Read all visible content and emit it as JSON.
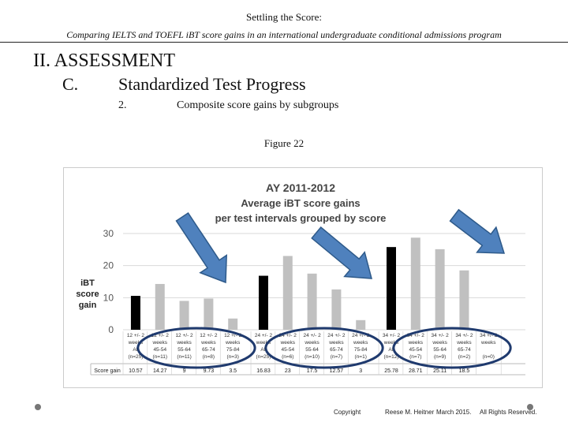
{
  "header": {
    "title": "Settling the Score:",
    "subtitle": "Comparing IELTS and TOEFL iBT score gains in an international undergraduate conditional admissions program"
  },
  "outline": {
    "section": "II.  ASSESSMENT",
    "subsection_letter": "C.",
    "subsection_title": "Standardized Test Progress",
    "item_number": "2.",
    "item_text": "Composite score gains by subgroups"
  },
  "figure_label": "Figure 22",
  "chart_data": {
    "type": "bar",
    "title": [
      "AY 2011-2012",
      "Average iBT score gains",
      "per  test intervals grouped by score"
    ],
    "ylabel": [
      "iBT",
      "score",
      "gain"
    ],
    "ylim": [
      0,
      30
    ],
    "yticks": [
      0,
      10,
      20,
      30
    ],
    "table_row_header": "Score gain",
    "categories": [
      [
        "12 +/- 2",
        "weeks",
        "All",
        "(n=25)"
      ],
      [
        "12 +/- 2",
        "weeks",
        "45-54",
        "(n=11)"
      ],
      [
        "12 +/- 2",
        "weeks",
        "55-64",
        "(n=11)"
      ],
      [
        "12 +/- 2",
        "weeks",
        "65-74",
        "(n=8)"
      ],
      [
        "12 +/- 2",
        "weeks",
        "75-84",
        "(n=3)"
      ],
      [
        "24 +/- 2",
        "weeks",
        "All",
        "(n=25)"
      ],
      [
        "24 +/- 2",
        "weeks",
        "45-54",
        "(n=6)"
      ],
      [
        "24 +/- 2",
        "weeks",
        "55-64",
        "(n=10)"
      ],
      [
        "24 +/- 2",
        "weeks",
        "65-74",
        "(n=7)"
      ],
      [
        "24 +/- 2",
        "weeks",
        "75-84",
        "(n=1)"
      ],
      [
        "34 +/- 2",
        "weeks",
        "All",
        "(n=12)"
      ],
      [
        "34 +/- 2",
        "weeks",
        "45-54",
        "(n=7)"
      ],
      [
        "34 +/- 2",
        "weeks",
        "55-64",
        "(n=9)"
      ],
      [
        "34 +/- 2",
        "weeks",
        "65-74",
        "(n=2)"
      ],
      [
        "34 +/- 2",
        "weeks",
        "",
        "(n=0)"
      ]
    ],
    "values": [
      10.57,
      14.27,
      9,
      9.73,
      3.5,
      16.83,
      23,
      17.5,
      12.57,
      3,
      25.78,
      28.71,
      25.11,
      18.5,
      null
    ],
    "value_labels": [
      "10.57",
      "14.27",
      "9",
      "9.73",
      "3.5",
      "16.83",
      "23",
      "17.5",
      "12.57",
      "3",
      "25.78",
      "28.71",
      "25.11",
      "18.5",
      ""
    ],
    "bar_colors": [
      "#000000",
      "#c0c0c0",
      "#c0c0c0",
      "#c0c0c0",
      "#c0c0c0",
      "#000000",
      "#c0c0c0",
      "#c0c0c0",
      "#c0c0c0",
      "#c0c0c0",
      "#000000",
      "#c0c0c0",
      "#c0c0c0",
      "#c0c0c0",
      "#c0c0c0"
    ],
    "arrow_color": "#4f81bd",
    "ellipse_color": "#1f3a6e",
    "grid": true
  },
  "footer": {
    "copyright": "Copyright",
    "author": "Reese M. Heitner",
    "date": "March 2015.",
    "rights": "All Rights Reserved."
  }
}
